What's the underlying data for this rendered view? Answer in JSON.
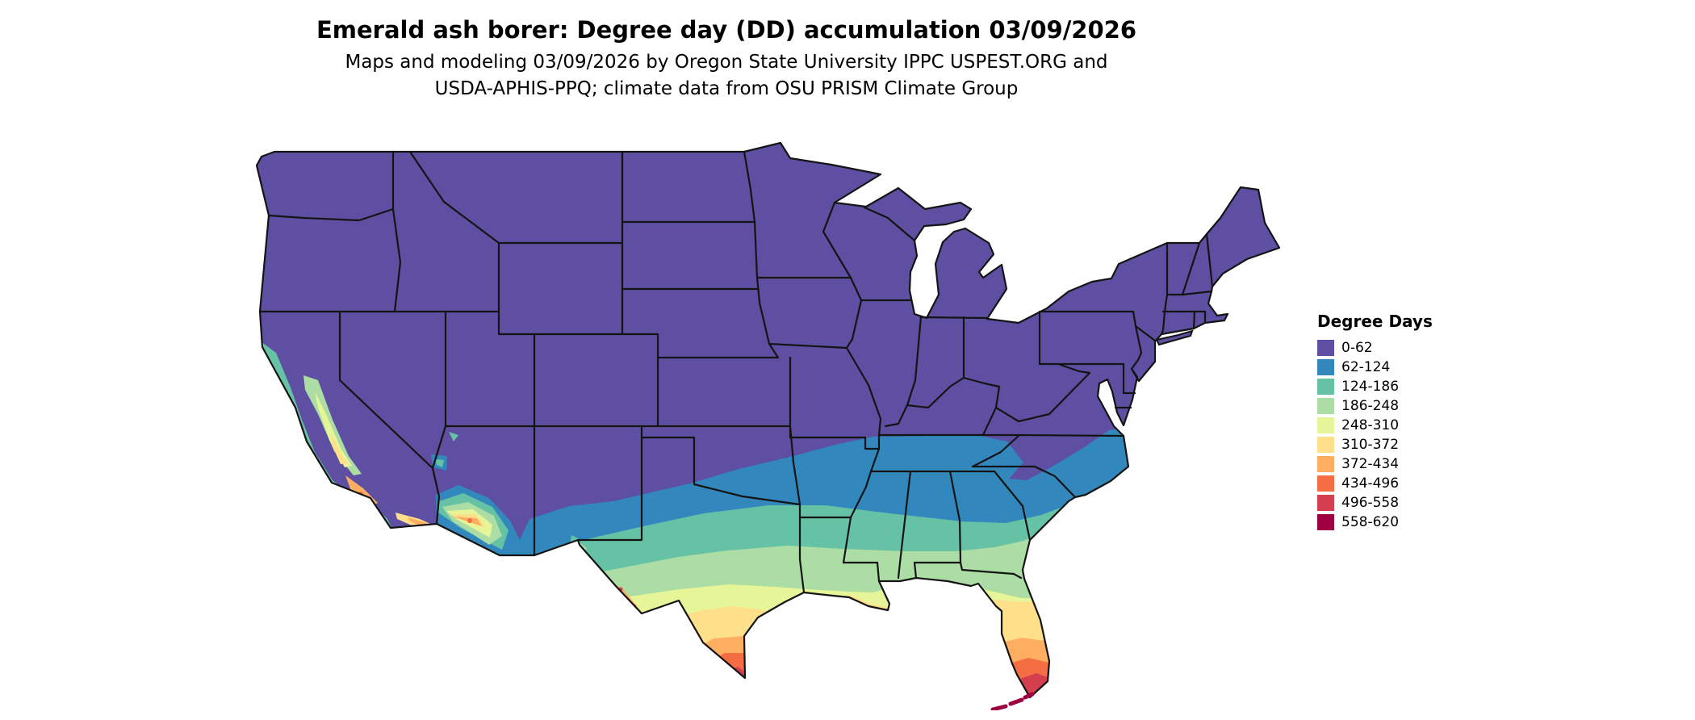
{
  "title": "Emerald ash borer: Degree day (DD) accumulation 03/09/2026",
  "subtitle": {
    "line1": "Maps and modeling 03/09/2026 by Oregon State University IPPC USPEST.ORG and",
    "line2": "USDA-APHIS-PPQ; climate data from OSU PRISM Climate Group"
  },
  "legend": {
    "title": "Degree Days",
    "items": [
      {
        "label": "0-62",
        "color": "#5e4fa2"
      },
      {
        "label": "62-124",
        "color": "#3288bd"
      },
      {
        "label": "124-186",
        "color": "#66c2a5"
      },
      {
        "label": "186-248",
        "color": "#abdda4"
      },
      {
        "label": "248-310",
        "color": "#e6f598"
      },
      {
        "label": "310-372",
        "color": "#fee08b"
      },
      {
        "label": "372-434",
        "color": "#fdae61"
      },
      {
        "label": "434-496",
        "color": "#f46d43"
      },
      {
        "label": "496-558",
        "color": "#d53e4f"
      },
      {
        "label": "558-620",
        "color": "#9e0142"
      }
    ]
  },
  "map": {
    "border_color": "#141414",
    "background": "#ffffff"
  }
}
